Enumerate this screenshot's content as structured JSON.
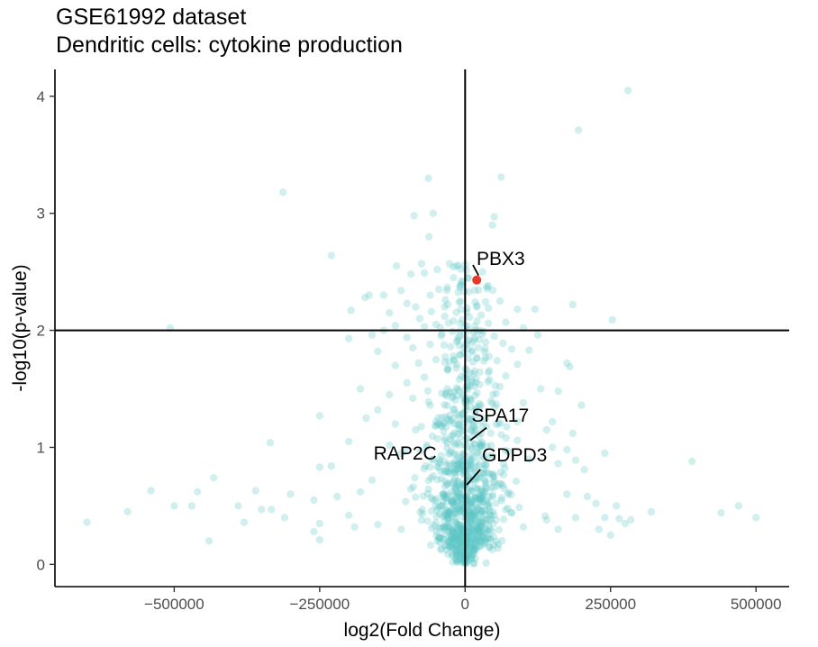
{
  "chart_data": {
    "type": "scatter",
    "title": "GSE61992 dataset",
    "subtitle": "Dendritic cells: cytokine production",
    "xlabel": "log2(Fold Change)",
    "ylabel": "-log10(p-value)",
    "xlim": [
      -705000,
      557000
    ],
    "ylim": [
      -0.19,
      4.23
    ],
    "x_ticks": [
      -500000,
      -250000,
      0,
      250000,
      500000
    ],
    "x_tick_labels": [
      "−500000",
      "−250000",
      "0",
      "250000",
      "500000"
    ],
    "y_ticks": [
      0,
      1,
      2,
      3,
      4
    ],
    "y_tick_labels": [
      "0",
      "1",
      "2",
      "3",
      "4"
    ],
    "reference_lines": {
      "vertical_x": 0,
      "horizontal_y": 2
    },
    "grid": false,
    "point_color": "#5cc4c6",
    "highlight_color": "#e8382c",
    "highlighted": [
      {
        "label": "PBX3",
        "x": 20000,
        "y": 2.43,
        "highlight": true,
        "label_x": 32000,
        "label_y": 2.62
      },
      {
        "label": "SPA17",
        "x": 12000,
        "y": 1.06,
        "highlight": false,
        "label_x": 14000,
        "label_y": 1.22
      },
      {
        "label": "GDPD3",
        "x": 3000,
        "y": 0.68,
        "highlight": false,
        "label_x": 32000,
        "label_y": 0.82
      },
      {
        "label": "RAP2C",
        "x": -35000,
        "y": 0.76,
        "highlight": false,
        "label_x": -35000,
        "label_y": 0.84
      }
    ],
    "outlier_points": [
      [
        280000,
        4.05
      ],
      [
        195000,
        3.71
      ],
      [
        -313000,
        3.18
      ],
      [
        -63000,
        3.3
      ],
      [
        62000,
        3.31
      ],
      [
        -55000,
        3.0
      ],
      [
        -88000,
        2.98
      ],
      [
        50000,
        2.97
      ],
      [
        47000,
        2.9
      ],
      [
        -62000,
        2.8
      ],
      [
        -230000,
        2.64
      ],
      [
        -118000,
        2.55
      ],
      [
        -27000,
        2.57
      ],
      [
        -75000,
        2.57
      ],
      [
        -48000,
        2.52
      ],
      [
        -70000,
        2.49
      ],
      [
        -93000,
        2.48
      ],
      [
        -15000,
        2.55
      ],
      [
        -6000,
        2.42
      ],
      [
        -20000,
        2.45
      ],
      [
        30000,
        2.5
      ],
      [
        40000,
        2.38
      ],
      [
        -140000,
        2.3
      ],
      [
        -165000,
        2.3
      ],
      [
        -172000,
        2.28
      ],
      [
        -110000,
        2.34
      ],
      [
        -60000,
        2.3
      ],
      [
        -45000,
        2.35
      ],
      [
        -100000,
        2.23
      ],
      [
        -85000,
        2.2
      ],
      [
        -30000,
        2.22
      ],
      [
        -10000,
        2.24
      ],
      [
        -35000,
        2.12
      ],
      [
        -78000,
        2.1
      ],
      [
        -196000,
        2.17
      ],
      [
        -130000,
        2.15
      ],
      [
        -58000,
        2.16
      ],
      [
        20000,
        2.2
      ],
      [
        40000,
        2.19
      ],
      [
        60000,
        2.25
      ],
      [
        90000,
        2.18
      ],
      [
        120000,
        2.18
      ],
      [
        185000,
        2.22
      ],
      [
        253000,
        2.09
      ],
      [
        -507000,
        2.02
      ],
      [
        -70000,
        2.03
      ],
      [
        -140000,
        2.0
      ],
      [
        -120000,
        2.04
      ],
      [
        -50000,
        2.05
      ],
      [
        -20000,
        2.08
      ],
      [
        40000,
        2.06
      ],
      [
        70000,
        2.07
      ],
      [
        100000,
        2.02
      ],
      [
        -160000,
        1.96
      ],
      [
        -100000,
        1.94
      ],
      [
        -40000,
        1.97
      ],
      [
        15000,
        1.98
      ],
      [
        50000,
        1.95
      ],
      [
        125000,
        1.96
      ],
      [
        -200000,
        1.93
      ],
      [
        -60000,
        1.88
      ],
      [
        35000,
        1.9
      ],
      [
        65000,
        1.89
      ],
      [
        -90000,
        1.85
      ],
      [
        -25000,
        1.86
      ],
      [
        80000,
        1.84
      ],
      [
        -150000,
        1.82
      ],
      [
        110000,
        1.83
      ],
      [
        -50000,
        1.75
      ],
      [
        20000,
        1.76
      ],
      [
        -80000,
        1.72
      ],
      [
        55000,
        1.74
      ],
      [
        -120000,
        1.7
      ],
      [
        90000,
        1.71
      ],
      [
        175000,
        1.72
      ],
      [
        180000,
        1.69
      ],
      [
        -30000,
        1.66
      ],
      [
        40000,
        1.64
      ],
      [
        -70000,
        1.6
      ],
      [
        70000,
        1.61
      ],
      [
        -10000,
        1.58
      ],
      [
        -100000,
        1.55
      ],
      [
        60000,
        1.52
      ],
      [
        130000,
        1.5
      ],
      [
        -130000,
        1.45
      ],
      [
        -180000,
        1.5
      ],
      [
        160000,
        1.48
      ],
      [
        -90000,
        1.42
      ],
      [
        100000,
        1.38
      ],
      [
        -60000,
        1.36
      ],
      [
        200000,
        1.36
      ],
      [
        -150000,
        1.32
      ],
      [
        -250000,
        1.27
      ],
      [
        -170000,
        1.25
      ],
      [
        -120000,
        1.2
      ],
      [
        90000,
        1.22
      ],
      [
        150000,
        1.22
      ],
      [
        -85000,
        1.15
      ],
      [
        -40000,
        1.18
      ],
      [
        140000,
        1.15
      ],
      [
        185000,
        1.12
      ],
      [
        -200000,
        1.05
      ],
      [
        -130000,
        1.02
      ],
      [
        90000,
        1.06
      ],
      [
        150000,
        1.0
      ],
      [
        175000,
        0.98
      ],
      [
        -335000,
        1.04
      ],
      [
        -230000,
        0.84
      ],
      [
        -250000,
        0.83
      ],
      [
        -110000,
        0.95
      ],
      [
        240000,
        0.95
      ],
      [
        160000,
        0.86
      ],
      [
        110000,
        0.9
      ],
      [
        190000,
        0.89
      ],
      [
        205000,
        0.81
      ],
      [
        390000,
        0.88
      ],
      [
        -160000,
        0.72
      ],
      [
        -432000,
        0.74
      ],
      [
        -460000,
        0.62
      ],
      [
        -360000,
        0.63
      ],
      [
        -300000,
        0.6
      ],
      [
        -180000,
        0.62
      ],
      [
        175000,
        0.6
      ],
      [
        -540000,
        0.63
      ],
      [
        -500000,
        0.5
      ],
      [
        -580000,
        0.45
      ],
      [
        -650000,
        0.36
      ],
      [
        -470000,
        0.5
      ],
      [
        -390000,
        0.5
      ],
      [
        -350000,
        0.47
      ],
      [
        -333000,
        0.47
      ],
      [
        -260000,
        0.55
      ],
      [
        -220000,
        0.58
      ],
      [
        -310000,
        0.4
      ],
      [
        -380000,
        0.36
      ],
      [
        -440000,
        0.2
      ],
      [
        -250000,
        0.35
      ],
      [
        -260000,
        0.28
      ],
      [
        -250000,
        0.21
      ],
      [
        470000,
        0.5
      ],
      [
        440000,
        0.44
      ],
      [
        500000,
        0.4
      ],
      [
        320000,
        0.45
      ],
      [
        285000,
        0.38
      ],
      [
        260000,
        0.5
      ],
      [
        225000,
        0.52
      ],
      [
        210000,
        0.58
      ],
      [
        230000,
        0.3
      ],
      [
        275000,
        0.35
      ],
      [
        250000,
        0.25
      ],
      [
        190000,
        0.4
      ],
      [
        265000,
        0.39
      ],
      [
        240000,
        0.4
      ],
      [
        140000,
        0.38
      ],
      [
        -150000,
        0.34
      ],
      [
        -190000,
        0.32
      ],
      [
        -200000,
        0.42
      ],
      [
        -110000,
        0.3
      ],
      [
        100000,
        0.32
      ],
      [
        160000,
        0.3
      ]
    ],
    "density_bands": [
      {
        "y_min": 0.0,
        "y_max": 0.12,
        "x_sd": 12000,
        "n": 60
      },
      {
        "y_min": 0.12,
        "y_max": 0.35,
        "x_sd": 28000,
        "n": 230
      },
      {
        "y_min": 0.35,
        "y_max": 0.6,
        "x_sd": 40000,
        "n": 210
      },
      {
        "y_min": 0.6,
        "y_max": 0.9,
        "x_sd": 42000,
        "n": 160
      },
      {
        "y_min": 0.9,
        "y_max": 1.25,
        "x_sd": 38000,
        "n": 110
      },
      {
        "y_min": 1.25,
        "y_max": 1.6,
        "x_sd": 32000,
        "n": 75
      },
      {
        "y_min": 1.6,
        "y_max": 2.0,
        "x_sd": 26000,
        "n": 55
      },
      {
        "y_min": 2.0,
        "y_max": 2.4,
        "x_sd": 20000,
        "n": 35
      },
      {
        "y_min": 2.4,
        "y_max": 2.6,
        "x_sd": 12000,
        "n": 8
      }
    ]
  }
}
